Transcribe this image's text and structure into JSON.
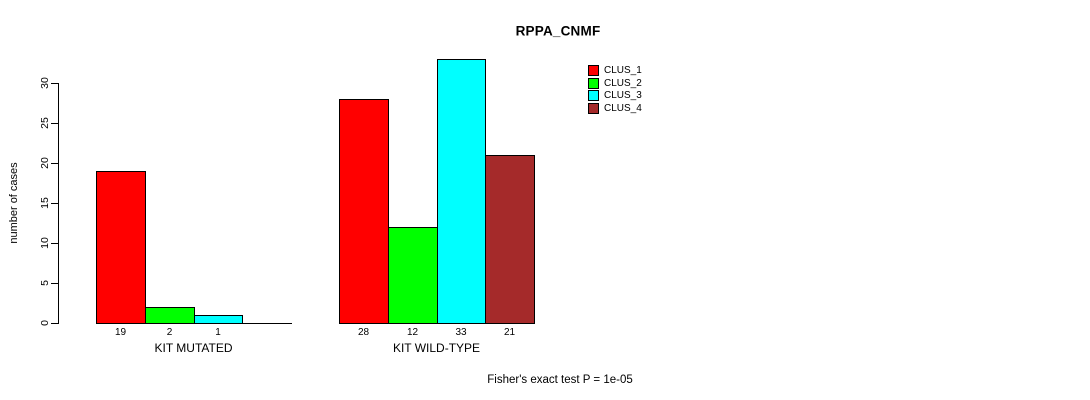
{
  "title": "RPPA_CNMF",
  "footnote": "Fisher's exact test P = 1e-05",
  "chart_data": {
    "type": "bar",
    "title": "RPPA_CNMF",
    "xlabel": "",
    "ylabel": "number of cases",
    "ylim": [
      0,
      33
    ],
    "yticks": [
      0,
      5,
      10,
      15,
      20,
      25,
      30
    ],
    "grid": false,
    "legend_position": "top-right",
    "bar_value_labels_shown": true,
    "legend": [
      {
        "name": "CLUS_1",
        "color": "#ff0000"
      },
      {
        "name": "CLUS_2",
        "color": "#00ff00"
      },
      {
        "name": "CLUS_3",
        "color": "#00ffff"
      },
      {
        "name": "CLUS_4",
        "color": "#a52a2a"
      }
    ],
    "categories": [
      "KIT MUTATED",
      "KIT WILD-TYPE"
    ],
    "series": [
      {
        "name": "CLUS_1",
        "values": [
          19,
          28
        ]
      },
      {
        "name": "CLUS_2",
        "values": [
          2,
          12
        ]
      },
      {
        "name": "CLUS_3",
        "values": [
          1,
          33
        ]
      },
      {
        "name": "CLUS_4",
        "values": [
          0,
          21
        ]
      }
    ],
    "footnote": "Fisher's exact test P = 1e-05"
  }
}
